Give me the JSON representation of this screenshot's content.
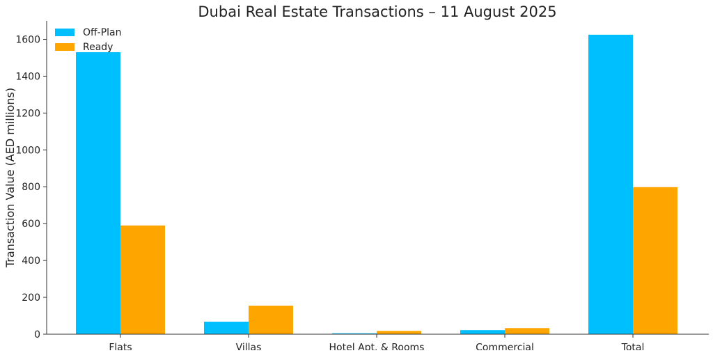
{
  "chart_data": {
    "type": "bar",
    "title": "Dubai Real Estate Transactions – 11 August 2025",
    "xlabel": "",
    "ylabel": "Transaction Value (AED millions)",
    "categories": [
      "Flats",
      "Villas",
      "Hotel Apt. & Rooms",
      "Commercial",
      "Total"
    ],
    "series": [
      {
        "name": "Off-Plan",
        "color": "#00BFFF",
        "values": [
          1530,
          68,
          5,
          22,
          1625
        ]
      },
      {
        "name": "Ready",
        "color": "#FFA500",
        "values": [
          590,
          155,
          18,
          33,
          798
        ]
      }
    ],
    "ylim": [
      0,
      1700
    ],
    "yticks": [
      0,
      200,
      400,
      600,
      800,
      1000,
      1200,
      1400,
      1600
    ],
    "grid": false,
    "legend_position": "top-left"
  }
}
